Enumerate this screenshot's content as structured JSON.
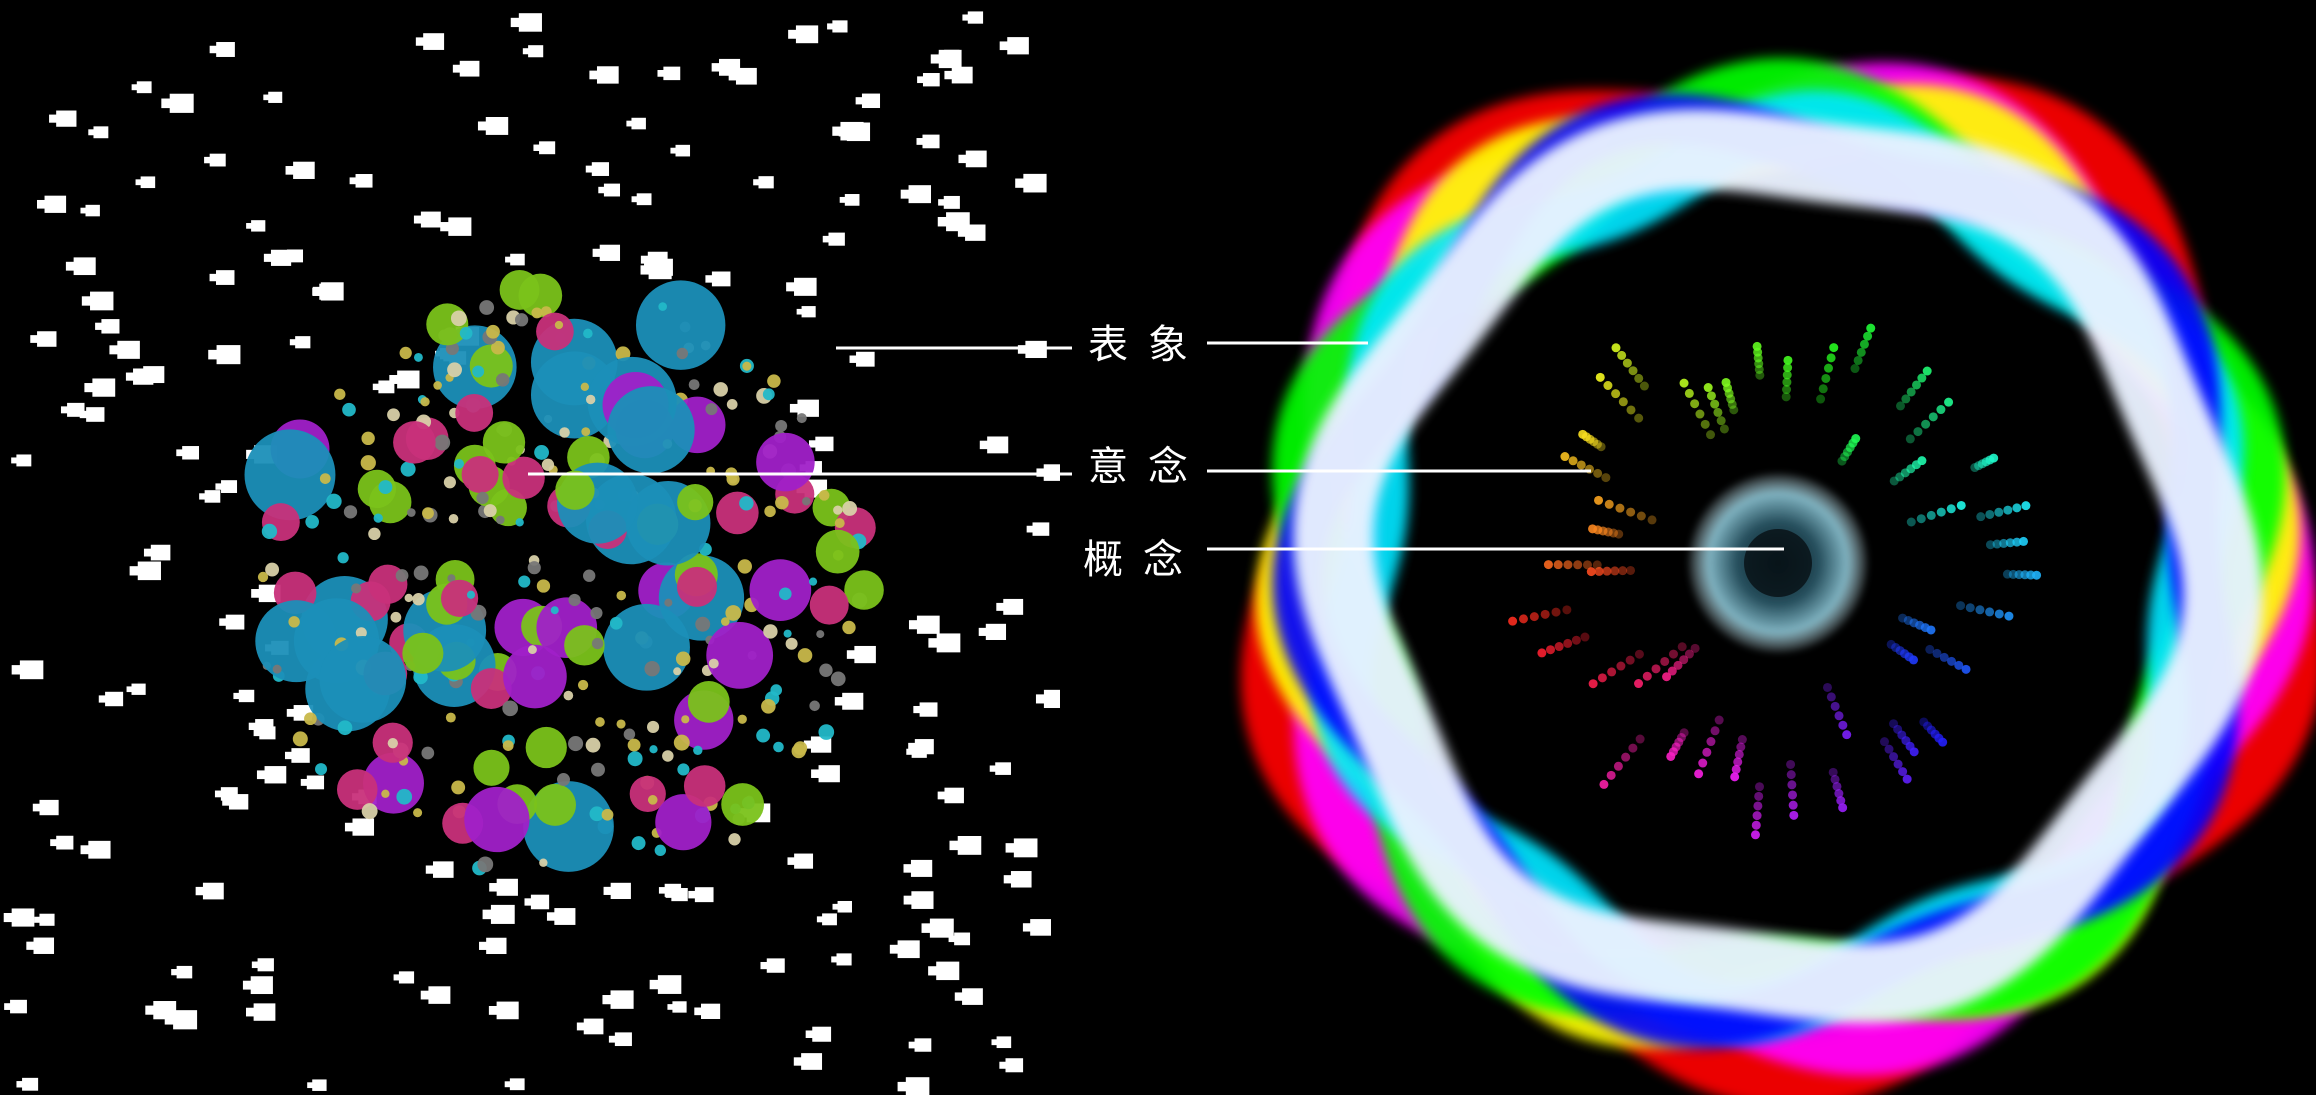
{
  "labels": {
    "representation": "表象",
    "intention": "意念",
    "concept": "概念"
  },
  "colors": {
    "background": "#000000",
    "particle": "#ffffff",
    "leader_line": "#ffffff",
    "ring_bands": [
      "#ff0000",
      "#ff00ff",
      "#ffff00",
      "#00ff00",
      "#00e5ff",
      "#0000ff",
      "#eaf2ff"
    ],
    "dot_palette": [
      "#1b8fb8",
      "#a020c8",
      "#c8307a",
      "#7ac21a",
      "#22b8c8",
      "#d8d0a8",
      "#777777",
      "#c8b84a"
    ]
  },
  "icons": {
    "left": "particle-cluster",
    "right": "rainbow-torus-with-radiating-streaks"
  }
}
